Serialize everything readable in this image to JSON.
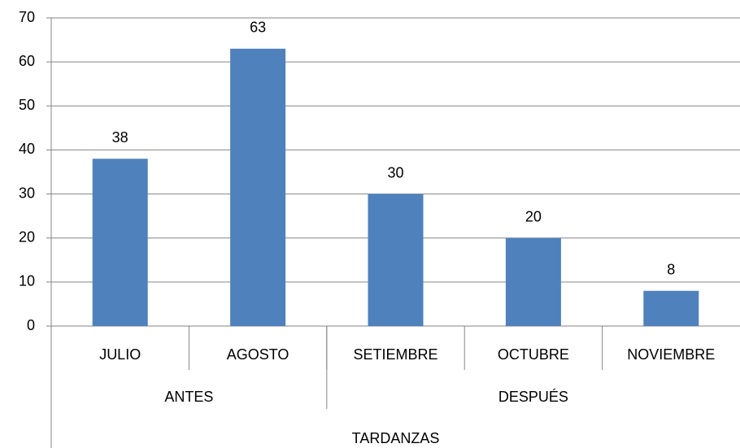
{
  "chart_data": {
    "type": "bar",
    "categories": [
      "JULIO",
      "AGOSTO",
      "SETIEMBRE",
      "OCTUBRE",
      "NOVIEMBRE"
    ],
    "values": [
      38,
      63,
      30,
      20,
      8
    ],
    "groups": [
      {
        "name": "ANTES",
        "count": 2
      },
      {
        "name": "DESPUÉS",
        "count": 3
      }
    ],
    "x_label": "TARDANZAS",
    "color": "#4f81bd",
    "ylim": [
      0,
      70
    ],
    "yticks": [
      0,
      10,
      20,
      30,
      40,
      50,
      60,
      70
    ],
    "grid": true
  }
}
